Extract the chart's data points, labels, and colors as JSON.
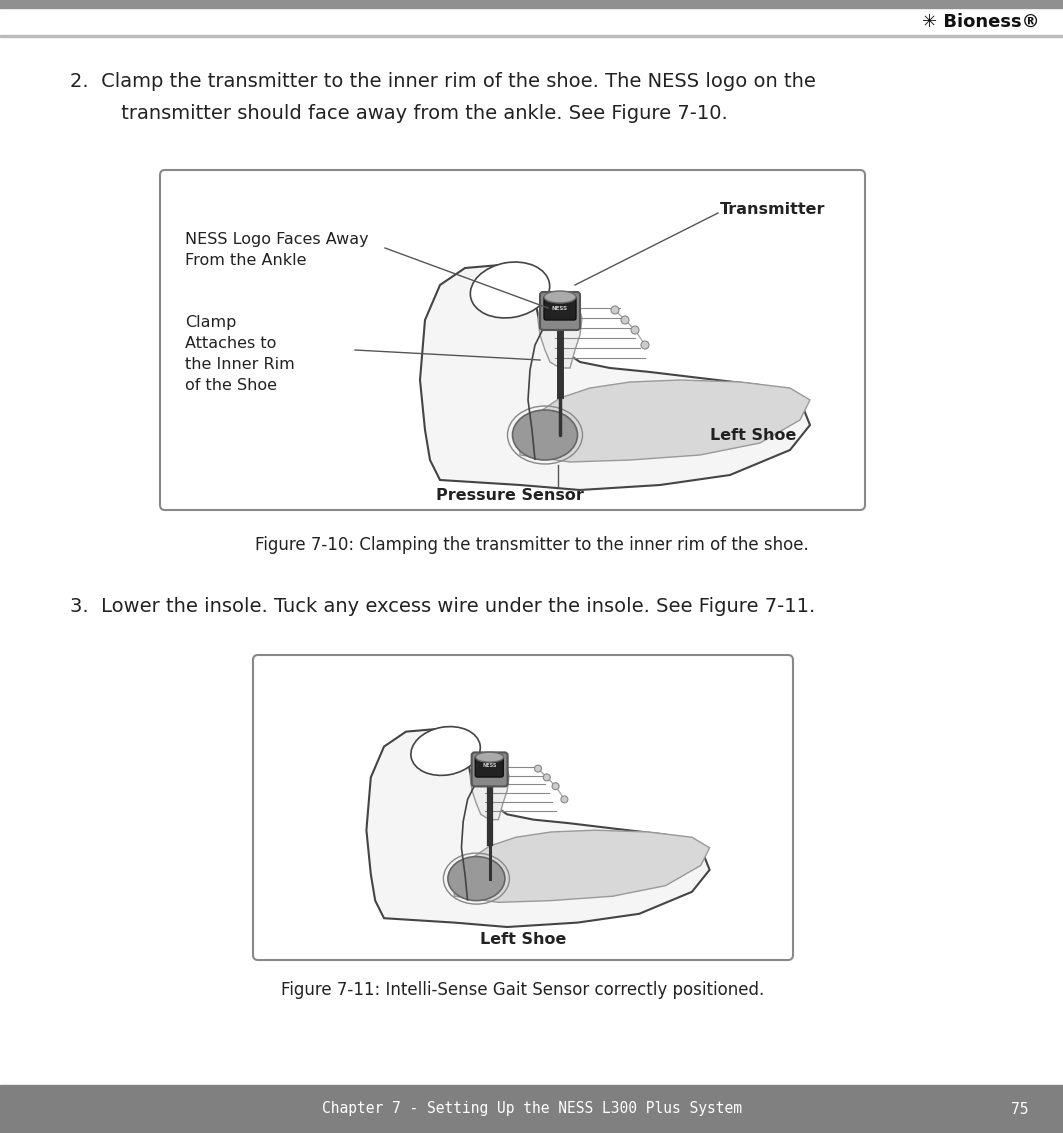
{
  "bg_color": "#ffffff",
  "header_bar_color": "#909090",
  "footer_bar_color": "#808080",
  "footer_text": "Chapter 7 - Setting Up the NESS L300 Plus System",
  "footer_page": "75",
  "footer_text_color": "#ffffff",
  "footer_fontsize": 10.5,
  "text_color": "#222222",
  "label_fontsize": 11.5,
  "step2_line1": "2.  Clamp the transmitter to the inner rim of the shoe. The NESS logo on the",
  "step2_line2": "     transmitter should face away from the ankle. See Figure 7-10.",
  "step2_fontsize": 14,
  "step3_line": "3.  Lower the insole. Tuck any excess wire under the insole. See Figure 7-11.",
  "step3_fontsize": 14,
  "fig710_caption": "Figure 7-10: Clamping the transmitter to the inner rim of the shoe.",
  "fig711_caption": "Figure 7-11: Intelli-Sense Gait Sensor correctly positioned.",
  "caption_fontsize": 12,
  "box_edgecolor": "#888888",
  "box_facecolor": "#ffffff",
  "shoe_edgecolor": "#444444",
  "shoe_facecolor": "#f5f5f5",
  "insole_facecolor": "#d0d0d0",
  "sensor_facecolor": "#999999",
  "trans_dark": "#222222",
  "trans_gray": "#888888",
  "wire_color": "#333333"
}
